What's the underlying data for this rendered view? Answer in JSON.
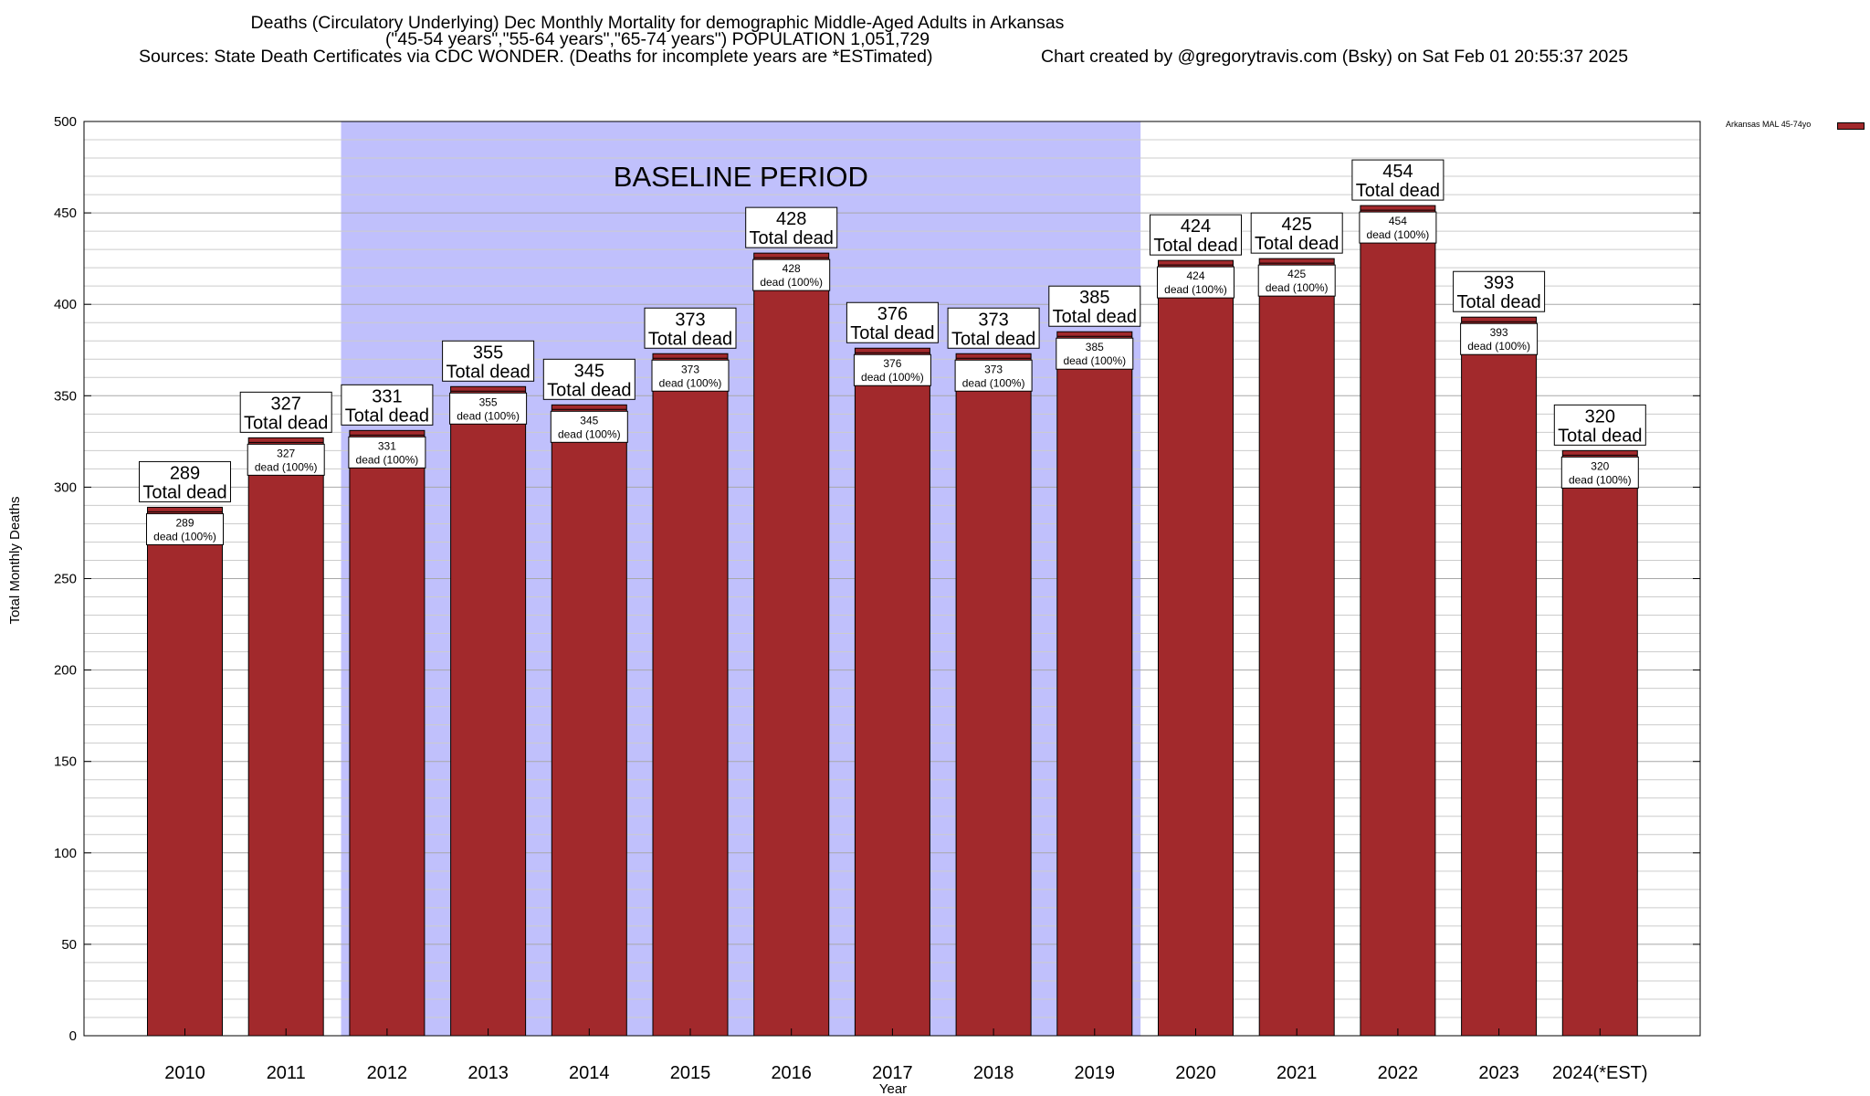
{
  "title": {
    "line1": "Deaths (Circulatory Underlying) Dec Monthly Mortality for demographic Middle-Aged Adults in Arkansas",
    "line2": "(\"45-54 years\",\"55-64 years\",\"65-74 years\") POPULATION 1,051,729",
    "sources": "Sources: State Death Certificates via CDC WONDER. (Deaths for incomplete years are *ESTimated)",
    "credit": "Chart created by @gregorytravis.com (Bsky) on Sat Feb 01 20:55:37 2025"
  },
  "chart_data": {
    "type": "bar",
    "xlabel": "Year",
    "ylabel": "Total Monthly Deaths",
    "ylim": [
      0,
      500
    ],
    "y_ticks": [
      0,
      50,
      100,
      150,
      200,
      250,
      300,
      350,
      400,
      450,
      500
    ],
    "y_minor_step": 10,
    "grid": true,
    "legend": "top-right",
    "categories": [
      "2010",
      "2011",
      "2012",
      "2013",
      "2014",
      "2015",
      "2016",
      "2017",
      "2018",
      "2019",
      "2020",
      "2021",
      "2022",
      "2023",
      "2024(*EST)"
    ],
    "series": [
      {
        "name": "Arkansas MAL 45-74yo",
        "color": "#a2292c",
        "values": [
          289,
          327,
          331,
          355,
          345,
          373,
          428,
          376,
          373,
          385,
          424,
          425,
          454,
          393,
          320
        ]
      }
    ],
    "total_label": "Total dead",
    "inner_label": "dead (100%)",
    "baseline": {
      "label": "BASELINE PERIOD",
      "from": "2012",
      "to": "2019",
      "color": "#c0c0fc"
    }
  }
}
